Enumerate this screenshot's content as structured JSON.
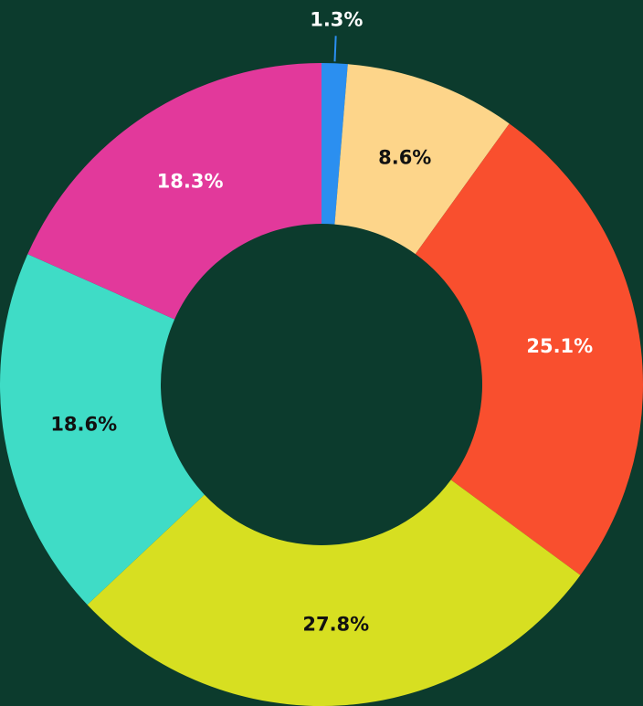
{
  "chart_data": {
    "type": "donut",
    "values": [
      1.3,
      8.6,
      25.1,
      27.8,
      18.6,
      18.3
    ],
    "value_labels": [
      "1.3%",
      "8.6%",
      "25.1%",
      "27.8%",
      "18.6%",
      "18.3%"
    ],
    "colors": [
      "#2b8ff0",
      "#fdd58a",
      "#f94f2e",
      "#d7df21",
      "#3fdcc6",
      "#e2399b"
    ]
  }
}
